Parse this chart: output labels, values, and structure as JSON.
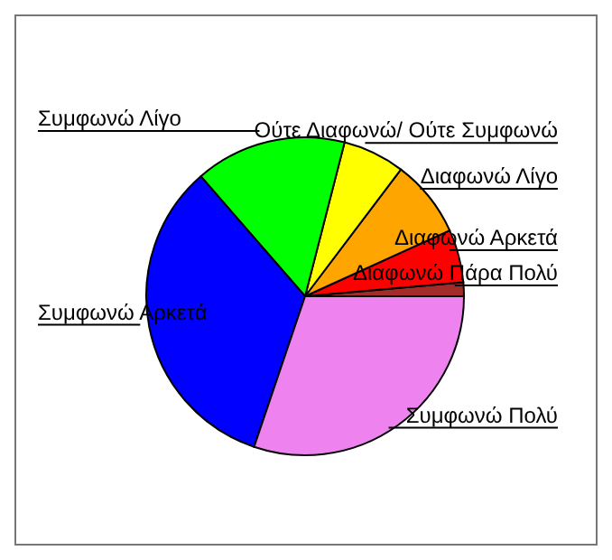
{
  "chart_data": {
    "type": "pie",
    "categories": [
      "Διαφωνώ Πάρα Πολύ",
      "Διαφωνώ Αρκετά",
      "Διαφωνώ Λίγο",
      "Ούτε Διαφωνώ/ Ούτε Συμφωνώ",
      "Συμφωνώ Λίγο",
      "Συμφωνώ Αρκετά",
      "Συμφωνώ Πολύ"
    ],
    "values": [
      1.4,
      5.4,
      7.9,
      6.3,
      15.4,
      33.4,
      30.2
    ],
    "colors": [
      "#a52a2a",
      "#ff0000",
      "#ffa500",
      "#ffff00",
      "#00ff00",
      "#0000ff",
      "#ee82ee"
    ],
    "legend": false
  }
}
